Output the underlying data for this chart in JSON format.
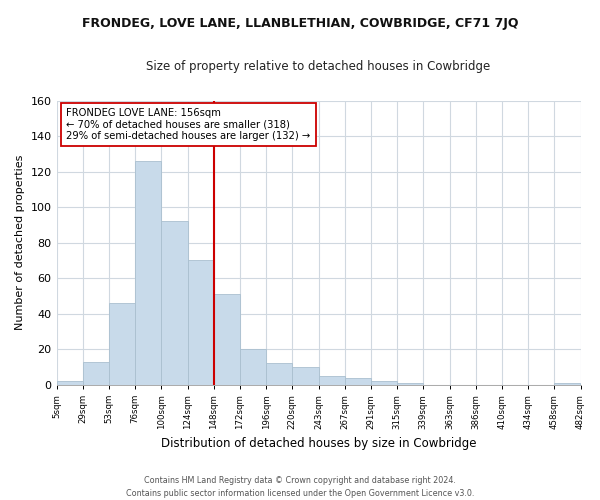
{
  "title": "FRONDEG, LOVE LANE, LLANBLETHIAN, COWBRIDGE, CF71 7JQ",
  "subtitle": "Size of property relative to detached houses in Cowbridge",
  "xlabel": "Distribution of detached houses by size in Cowbridge",
  "ylabel": "Number of detached properties",
  "bar_color": "#c8daea",
  "bar_edge_color": "#aabfcf",
  "categories": [
    "5sqm",
    "29sqm",
    "53sqm",
    "76sqm",
    "100sqm",
    "124sqm",
    "148sqm",
    "172sqm",
    "196sqm",
    "220sqm",
    "243sqm",
    "267sqm",
    "291sqm",
    "315sqm",
    "339sqm",
    "363sqm",
    "386sqm",
    "410sqm",
    "434sqm",
    "458sqm",
    "482sqm"
  ],
  "values": [
    2,
    13,
    46,
    126,
    92,
    70,
    51,
    20,
    12,
    10,
    5,
    4,
    2,
    1,
    0,
    0,
    0,
    0,
    0,
    1
  ],
  "ylim": [
    0,
    160
  ],
  "yticks": [
    0,
    20,
    40,
    60,
    80,
    100,
    120,
    140,
    160
  ],
  "property_line_color": "#cc0000",
  "annotation_title": "FRONDEG LOVE LANE: 156sqm",
  "annotation_line1": "← 70% of detached houses are smaller (318)",
  "annotation_line2": "29% of semi-detached houses are larger (132) →",
  "annotation_box_color": "#ffffff",
  "annotation_box_edge": "#cc0000",
  "footer_line1": "Contains HM Land Registry data © Crown copyright and database right 2024.",
  "footer_line2": "Contains public sector information licensed under the Open Government Licence v3.0.",
  "background_color": "#ffffff",
  "grid_color": "#d0d8e0"
}
